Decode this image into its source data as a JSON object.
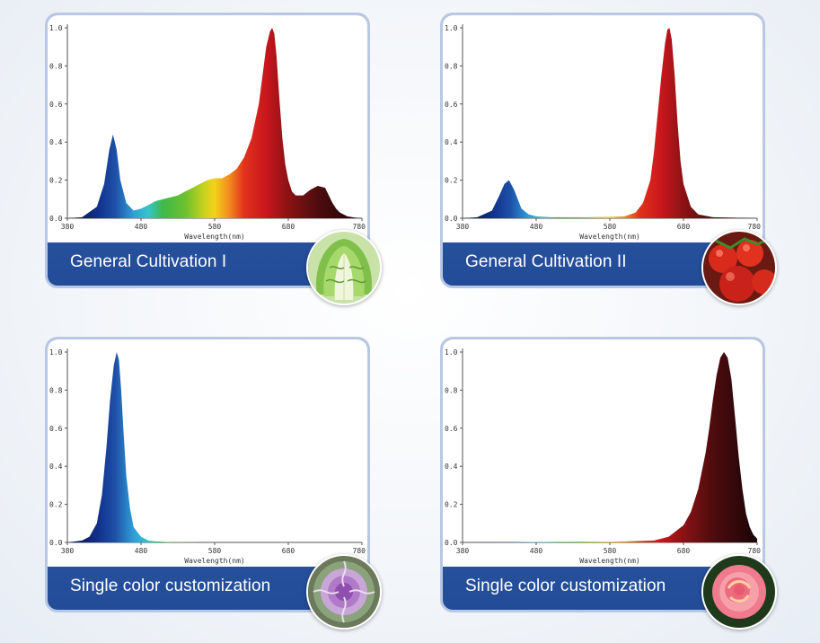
{
  "chart_data": [
    {
      "type": "area",
      "title": "",
      "caption": "General Cultivation I",
      "xlabel": "Wavelength(nm)",
      "ylabel": "",
      "xlim": [
        380,
        780
      ],
      "ylim": [
        0,
        1.0
      ],
      "xticks": [
        "380",
        "480",
        "580",
        "680",
        "780"
      ],
      "yticks": [
        "0.0",
        "0.2",
        "0.4",
        "0.6",
        "0.8",
        "1.0"
      ],
      "series": [
        {
          "x": [
            380,
            400,
            420,
            430,
            437,
            442,
            447,
            452,
            460,
            470,
            480,
            490,
            500,
            510,
            520,
            530,
            540,
            550,
            560,
            570,
            580,
            590,
            600,
            610,
            620,
            630,
            640,
            645,
            650,
            655,
            658,
            661,
            664,
            668,
            672,
            676,
            680,
            685,
            690,
            700,
            710,
            720,
            730,
            735,
            740,
            745,
            750,
            760,
            770,
            780
          ],
          "values": [
            0,
            0.005,
            0.06,
            0.18,
            0.36,
            0.44,
            0.36,
            0.2,
            0.08,
            0.04,
            0.05,
            0.07,
            0.09,
            0.1,
            0.11,
            0.12,
            0.14,
            0.16,
            0.18,
            0.2,
            0.21,
            0.21,
            0.23,
            0.26,
            0.32,
            0.42,
            0.6,
            0.75,
            0.9,
            0.98,
            1.0,
            0.97,
            0.85,
            0.62,
            0.42,
            0.28,
            0.2,
            0.14,
            0.12,
            0.12,
            0.15,
            0.17,
            0.16,
            0.12,
            0.08,
            0.05,
            0.03,
            0.01,
            0.004,
            0
          ]
        }
      ]
    },
    {
      "type": "area",
      "title": "",
      "caption": "General Cultivation II",
      "xlabel": "Wavelength(nm)",
      "ylabel": "",
      "xlim": [
        380,
        780
      ],
      "ylim": [
        0,
        1.0
      ],
      "xticks": [
        "380",
        "480",
        "580",
        "680",
        "780"
      ],
      "yticks": [
        "0.0",
        "0.2",
        "0.4",
        "0.6",
        "0.8",
        "1.0"
      ],
      "series": [
        {
          "x": [
            380,
            400,
            420,
            430,
            437,
            443,
            450,
            460,
            470,
            480,
            500,
            550,
            600,
            615,
            625,
            635,
            640,
            645,
            650,
            655,
            658,
            661,
            664,
            668,
            672,
            676,
            680,
            690,
            700,
            720,
            780
          ],
          "values": [
            0,
            0.005,
            0.04,
            0.12,
            0.18,
            0.2,
            0.15,
            0.05,
            0.02,
            0.01,
            0.005,
            0.005,
            0.01,
            0.03,
            0.08,
            0.2,
            0.35,
            0.55,
            0.75,
            0.92,
            0.99,
            1.0,
            0.94,
            0.75,
            0.5,
            0.3,
            0.18,
            0.06,
            0.02,
            0.005,
            0
          ]
        }
      ]
    },
    {
      "type": "area",
      "title": "",
      "caption": "Single color customization",
      "xlabel": "Wavelength(nm)",
      "ylabel": "",
      "xlim": [
        380,
        780
      ],
      "ylim": [
        0,
        1.0
      ],
      "xticks": [
        "380",
        "480",
        "580",
        "680",
        "780"
      ],
      "yticks": [
        "0.0",
        "0.2",
        "0.4",
        "0.6",
        "0.8",
        "1.0"
      ],
      "series": [
        {
          "x": [
            380,
            400,
            410,
            420,
            427,
            433,
            438,
            443,
            447,
            450,
            453,
            456,
            460,
            465,
            470,
            480,
            490,
            500,
            520,
            560,
            780
          ],
          "values": [
            0,
            0.01,
            0.03,
            0.1,
            0.25,
            0.5,
            0.75,
            0.93,
            1.0,
            0.96,
            0.8,
            0.6,
            0.35,
            0.18,
            0.08,
            0.03,
            0.01,
            0.005,
            0.002,
            0,
            0
          ]
        }
      ]
    },
    {
      "type": "area",
      "title": "",
      "caption": "Single color customization",
      "xlabel": "Wavelength(nm)",
      "ylabel": "",
      "xlim": [
        380,
        780
      ],
      "ylim": [
        0,
        1.0
      ],
      "xticks": [
        "380",
        "480",
        "580",
        "680",
        "780"
      ],
      "yticks": [
        "0.0",
        "0.2",
        "0.4",
        "0.6",
        "0.8",
        "1.0"
      ],
      "series": [
        {
          "x": [
            380,
            600,
            640,
            660,
            680,
            690,
            700,
            710,
            715,
            720,
            725,
            730,
            735,
            740,
            745,
            750,
            755,
            760,
            765,
            770,
            775,
            780
          ],
          "values": [
            0,
            0.005,
            0.01,
            0.03,
            0.09,
            0.16,
            0.28,
            0.47,
            0.6,
            0.75,
            0.88,
            0.97,
            1.0,
            0.97,
            0.86,
            0.66,
            0.45,
            0.28,
            0.15,
            0.08,
            0.04,
            0.02
          ]
        }
      ]
    }
  ],
  "cards": [
    {
      "label": "General Cultivation I",
      "photo_icon": "napa-cabbage-icon"
    },
    {
      "label": "General Cultivation II",
      "photo_icon": "tomato-icon"
    },
    {
      "label": "Single color customization",
      "photo_icon": "ornamental-kale-icon"
    },
    {
      "label": "Single color customization",
      "photo_icon": "rose-icon"
    }
  ],
  "colors": {
    "card_blue": "#234c98",
    "card_border": "#b9c8e2"
  }
}
